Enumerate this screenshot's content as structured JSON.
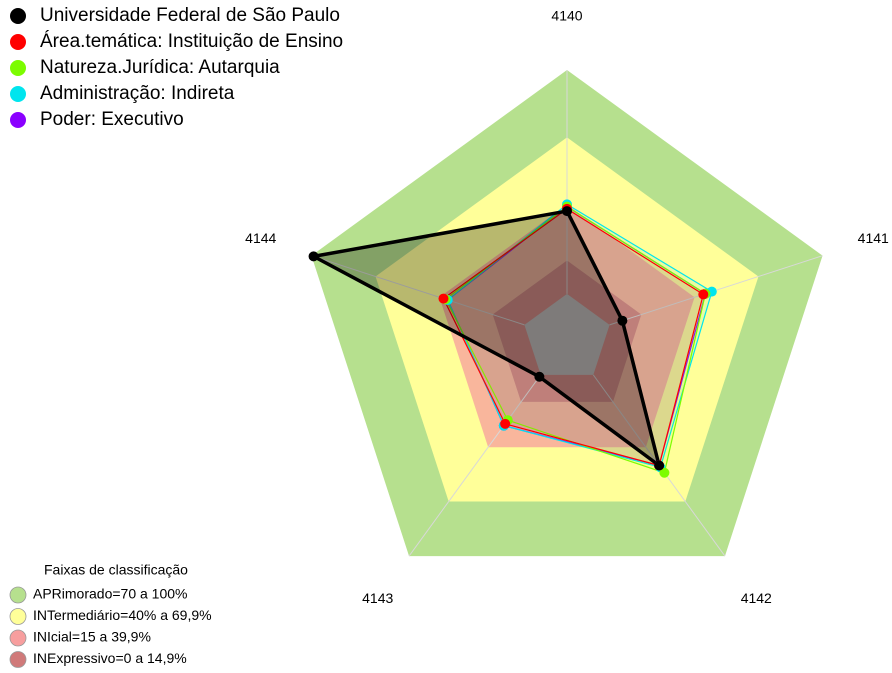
{
  "chart_data": {
    "type": "radar",
    "categories": [
      "4140",
      "4141",
      "4142",
      "4143",
      "4144"
    ],
    "rlim": [
      -20,
      100
    ],
    "series": [
      {
        "name": "Universidade Federal de São Paulo",
        "color": "#000000",
        "values": [
          37,
          6,
          50,
          1,
          99
        ]
      },
      {
        "name": "Área.temática: Instituição de Ensino",
        "color": "#ff0000",
        "values": [
          38,
          44,
          50,
          27,
          38
        ]
      },
      {
        "name": "Natureza.Jurídica: Autarquia",
        "color": "#7cfc00",
        "values": [
          39,
          45,
          54,
          25,
          37
        ]
      },
      {
        "name": "Administração: Indireta",
        "color": "#00e5ee",
        "values": [
          40,
          48,
          51,
          28,
          36
        ]
      },
      {
        "name": "Poder: Executivo",
        "color": "#8a00ff",
        "values": [
          39,
          45,
          50,
          28,
          36
        ]
      }
    ],
    "bands_title": "Faixas de classificação",
    "bands": [
      {
        "label": "APRimorado=70 a 100%",
        "color": "#b6e08e",
        "from": 70,
        "to": 100
      },
      {
        "label": "INTermediário=40% a 69,9%",
        "color": "#ffff99",
        "from": 40,
        "to": 69.9
      },
      {
        "label": "INIcial=15 a 39,9%",
        "color": "#f79e9e",
        "from": 15,
        "to": 39.9
      },
      {
        "label": "INExpressivo=0 a 14,9%",
        "color": "#d07a7a",
        "from": 0,
        "to": 14.9
      }
    ]
  }
}
